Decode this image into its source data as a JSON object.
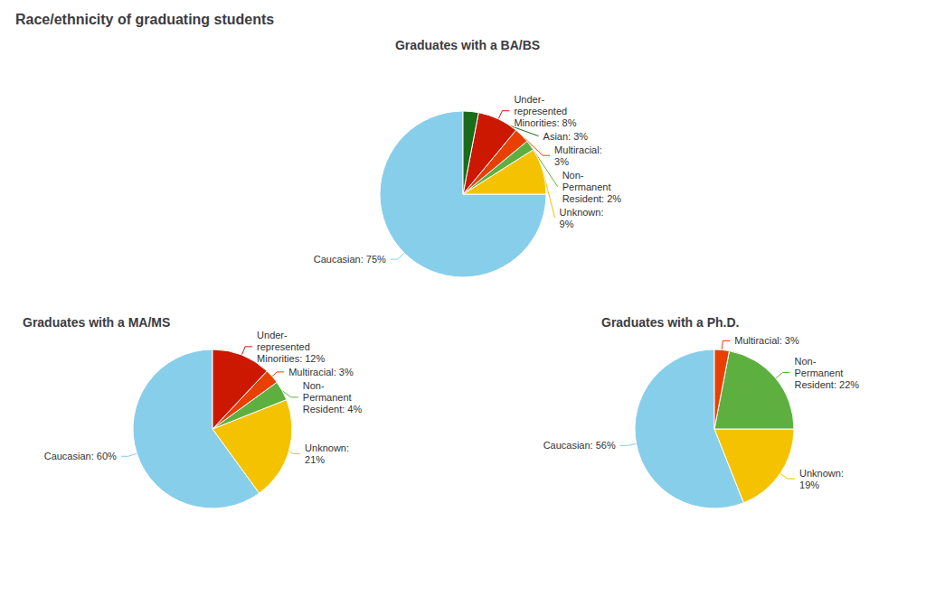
{
  "title": "Race/ethnicity of graduating students",
  "chart_data": [
    {
      "type": "pie",
      "title": "Graduates with a BA/BS",
      "categories": [
        "Caucasian: 75%",
        "Unknown:\n9%",
        "Non-\nPermanent\nResident: 2%",
        "Multiracial:\n3%",
        "Under-\nrepresented\nMinorities: 8%",
        "Asian: 3%"
      ],
      "values": [
        75,
        9,
        2,
        3,
        8,
        3
      ],
      "colors": [
        "#87CEEB",
        "#F5C200",
        "#5DB040",
        "#E84000",
        "#CC1800",
        "#1A6B1A"
      ]
    },
    {
      "type": "pie",
      "title": "Graduates with a MA/MS",
      "categories": [
        "Caucasian: 60%",
        "Unknown:\n21%",
        "Non-\nPermanent\nResident: 4%",
        "Multiracial: 3%",
        "Under-\nrepresented\nMinorities: 12%"
      ],
      "values": [
        60,
        21,
        4,
        3,
        12
      ],
      "colors": [
        "#87CEEB",
        "#F5C200",
        "#5DB040",
        "#E84000",
        "#CC1800"
      ]
    },
    {
      "type": "pie",
      "title": "Graduates with a Ph.D.",
      "categories": [
        "Caucasian: 56%",
        "Unknown:\n19%",
        "Non-\nPermanent\nResident: 22%",
        "Multiracial: 3%"
      ],
      "values": [
        56,
        19,
        22,
        3
      ],
      "colors": [
        "#87CEEB",
        "#F5C200",
        "#5DB040",
        "#E84000"
      ]
    }
  ]
}
